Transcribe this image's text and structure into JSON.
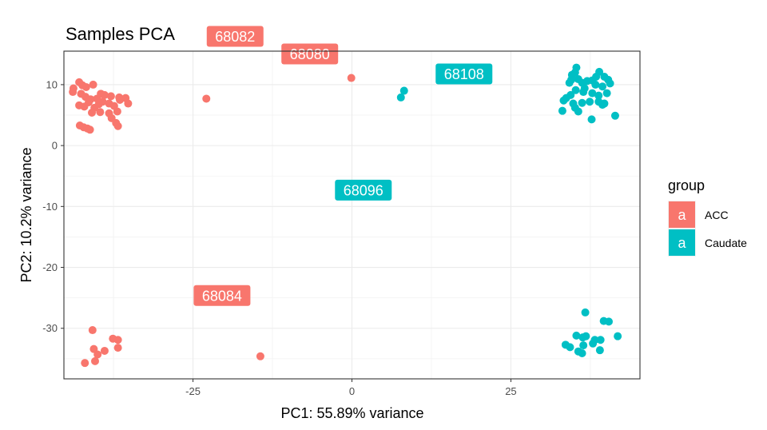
{
  "chart_data": {
    "type": "scatter",
    "title": "Samples PCA",
    "xlabel": "PC1: 55.89% variance",
    "ylabel": "PC2: 10.2% variance",
    "xlim": [
      -45.3,
      45.3
    ],
    "ylim": [
      -38.3,
      15.5
    ],
    "xticks": [
      -25,
      0,
      25
    ],
    "xtick_labels": [
      "-25",
      "0",
      "25"
    ],
    "yticks": [
      10,
      0,
      -10,
      -20,
      -30
    ],
    "ytick_labels": [
      "10",
      "0",
      "-10",
      "-20",
      "-30"
    ],
    "grid": true,
    "legend": {
      "title": "group",
      "position": "right",
      "key_glyph": "a",
      "entries": [
        {
          "label": "ACC",
          "color": "#F8766D"
        },
        {
          "label": "Caudate",
          "color": "#00BFC4"
        }
      ]
    },
    "series": [
      {
        "name": "ACC",
        "color": "#F8766D",
        "points": [
          [
            -43.8,
            9.4
          ],
          [
            -43.9,
            8.8
          ],
          [
            -42.9,
            10.4
          ],
          [
            -42.4,
            9.9
          ],
          [
            -41.8,
            9.6
          ],
          [
            -40.7,
            10.0
          ],
          [
            -42.6,
            8.5
          ],
          [
            -41.9,
            8.0
          ],
          [
            -41.1,
            7.6
          ],
          [
            -40.1,
            7.7
          ],
          [
            -39.5,
            8.5
          ],
          [
            -38.9,
            8.3
          ],
          [
            -37.9,
            8.1
          ],
          [
            -36.6,
            7.9
          ],
          [
            -35.6,
            7.8
          ],
          [
            -42.9,
            6.6
          ],
          [
            -42.1,
            6.4
          ],
          [
            -41.4,
            7.1
          ],
          [
            -40.5,
            6.2
          ],
          [
            -39.8,
            6.8
          ],
          [
            -39.2,
            7.2
          ],
          [
            -38.2,
            6.9
          ],
          [
            -37.4,
            6.5
          ],
          [
            -36.5,
            7.5
          ],
          [
            -35.2,
            6.9
          ],
          [
            -40.9,
            5.4
          ],
          [
            -39.6,
            5.5
          ],
          [
            -38.2,
            5.3
          ],
          [
            -36.9,
            5.6
          ],
          [
            -37.8,
            4.5
          ],
          [
            -37.1,
            3.7
          ],
          [
            -36.8,
            3.2
          ],
          [
            -42.8,
            3.3
          ],
          [
            -42.2,
            3.0
          ],
          [
            -41.6,
            2.8
          ],
          [
            -41.2,
            2.6
          ],
          [
            -22.9,
            7.7
          ],
          [
            -0.1,
            11.1
          ],
          [
            -40.8,
            -30.3
          ],
          [
            -40.6,
            -33.4
          ],
          [
            -40.0,
            -34.3
          ],
          [
            -38.9,
            -33.7
          ],
          [
            -37.6,
            -31.7
          ],
          [
            -36.8,
            -31.9
          ],
          [
            -36.8,
            -33.2
          ],
          [
            -42.0,
            -35.7
          ],
          [
            -40.4,
            -35.4
          ],
          [
            -14.4,
            -34.6
          ]
        ]
      },
      {
        "name": "Caudate",
        "color": "#00BFC4",
        "points": [
          [
            7.7,
            7.9
          ],
          [
            8.2,
            9.0
          ],
          [
            35.3,
            12.8
          ],
          [
            35.1,
            12.0
          ],
          [
            34.6,
            11.6
          ],
          [
            34.5,
            10.8
          ],
          [
            35.6,
            10.9
          ],
          [
            36.2,
            10.3
          ],
          [
            37.0,
            10.6
          ],
          [
            37.8,
            10.7
          ],
          [
            38.4,
            11.3
          ],
          [
            38.9,
            12.1
          ],
          [
            39.7,
            11.3
          ],
          [
            40.3,
            10.8
          ],
          [
            40.6,
            10.2
          ],
          [
            39.4,
            9.7
          ],
          [
            38.3,
            10.0
          ],
          [
            36.6,
            9.4
          ],
          [
            35.2,
            9.1
          ],
          [
            36.4,
            8.8
          ],
          [
            37.8,
            8.6
          ],
          [
            38.8,
            8.2
          ],
          [
            40.1,
            8.6
          ],
          [
            34.4,
            8.3
          ],
          [
            33.7,
            7.8
          ],
          [
            33.3,
            7.4
          ],
          [
            34.8,
            6.9
          ],
          [
            36.2,
            7.0
          ],
          [
            37.4,
            7.2
          ],
          [
            38.8,
            7.2
          ],
          [
            39.7,
            6.9
          ],
          [
            35.1,
            6.2
          ],
          [
            35.6,
            5.6
          ],
          [
            33.1,
            5.7
          ],
          [
            37.7,
            4.3
          ],
          [
            41.4,
            4.9
          ],
          [
            39.4,
            6.7
          ],
          [
            34.2,
            10.3
          ],
          [
            36.7,
            -27.4
          ],
          [
            36.8,
            -31.3
          ],
          [
            35.3,
            -31.2
          ],
          [
            36.3,
            -31.5
          ],
          [
            38.2,
            -31.9
          ],
          [
            39.6,
            -28.8
          ],
          [
            40.4,
            -28.9
          ],
          [
            41.8,
            -31.3
          ],
          [
            39.1,
            -31.9
          ],
          [
            33.6,
            -32.7
          ],
          [
            34.3,
            -33.1
          ],
          [
            35.6,
            -33.8
          ],
          [
            36.2,
            -34.1
          ],
          [
            37.9,
            -32.5
          ],
          [
            39.0,
            -33.6
          ],
          [
            36.4,
            -32.8
          ]
        ]
      }
    ],
    "annotations": [
      {
        "text": "68082",
        "x": -22.9,
        "y": 7.7,
        "series": "ACC"
      },
      {
        "text": "68080",
        "x": -0.1,
        "y": 11.1,
        "series": "ACC"
      },
      {
        "text": "68084",
        "x": -14.4,
        "y": -34.6,
        "series": "ACC"
      },
      {
        "text": "68108",
        "x": 8.2,
        "y": 9.0,
        "series": "Caudate"
      },
      {
        "text": "68096",
        "x": 7.7,
        "y": 7.9,
        "series": "Caudate"
      }
    ]
  }
}
